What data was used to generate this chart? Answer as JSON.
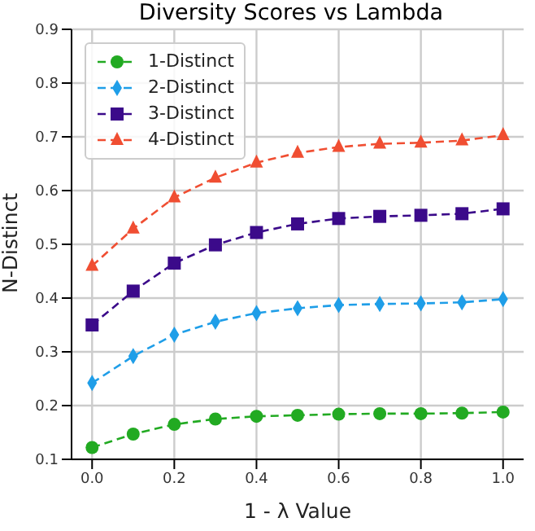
{
  "chart_data": {
    "type": "line",
    "title": "Diversity Scores vs Lambda",
    "xlabel": "1 - λ Value",
    "ylabel": "N-Distinct",
    "x": [
      0,
      0.1,
      0.2,
      0.3,
      0.4,
      0.5,
      0.6,
      0.7,
      0.8,
      0.9,
      1.0
    ],
    "series": [
      {
        "name": "1-Distinct",
        "color": "#22aa22",
        "marker": "circle",
        "values": [
          0.122,
          0.147,
          0.165,
          0.175,
          0.18,
          0.182,
          0.184,
          0.185,
          0.185,
          0.186,
          0.188
        ]
      },
      {
        "name": "2-Distinct",
        "color": "#1f9ee8",
        "marker": "diamond",
        "values": [
          0.242,
          0.292,
          0.332,
          0.356,
          0.372,
          0.381,
          0.387,
          0.389,
          0.39,
          0.392,
          0.398
        ]
      },
      {
        "name": "3-Distinct",
        "color": "#3b0a8a",
        "marker": "square",
        "values": [
          0.35,
          0.413,
          0.465,
          0.499,
          0.522,
          0.538,
          0.548,
          0.552,
          0.554,
          0.557,
          0.566
        ]
      },
      {
        "name": "4-Distinct",
        "color": "#f04e32",
        "marker": "triangle",
        "values": [
          0.46,
          0.529,
          0.587,
          0.624,
          0.652,
          0.67,
          0.681,
          0.687,
          0.689,
          0.693,
          0.703
        ]
      }
    ],
    "xlim": [
      -0.05,
      1.05
    ],
    "xticks": [
      {
        "value": 0,
        "label": "0.0"
      },
      {
        "value": 0.2,
        "label": "0.2"
      },
      {
        "value": 0.4,
        "label": "0.4"
      },
      {
        "value": 0.6,
        "label": "0.6"
      },
      {
        "value": 0.8,
        "label": "0.8"
      },
      {
        "value": 1.0,
        "label": "1.0"
      }
    ],
    "ylim": [
      0.1,
      0.9
    ],
    "yticks": [
      0.1,
      0.2,
      0.3,
      0.4,
      0.5,
      0.6,
      0.7,
      0.8,
      0.9
    ],
    "grid": true,
    "legend": "top left",
    "line_style": "dashed"
  }
}
